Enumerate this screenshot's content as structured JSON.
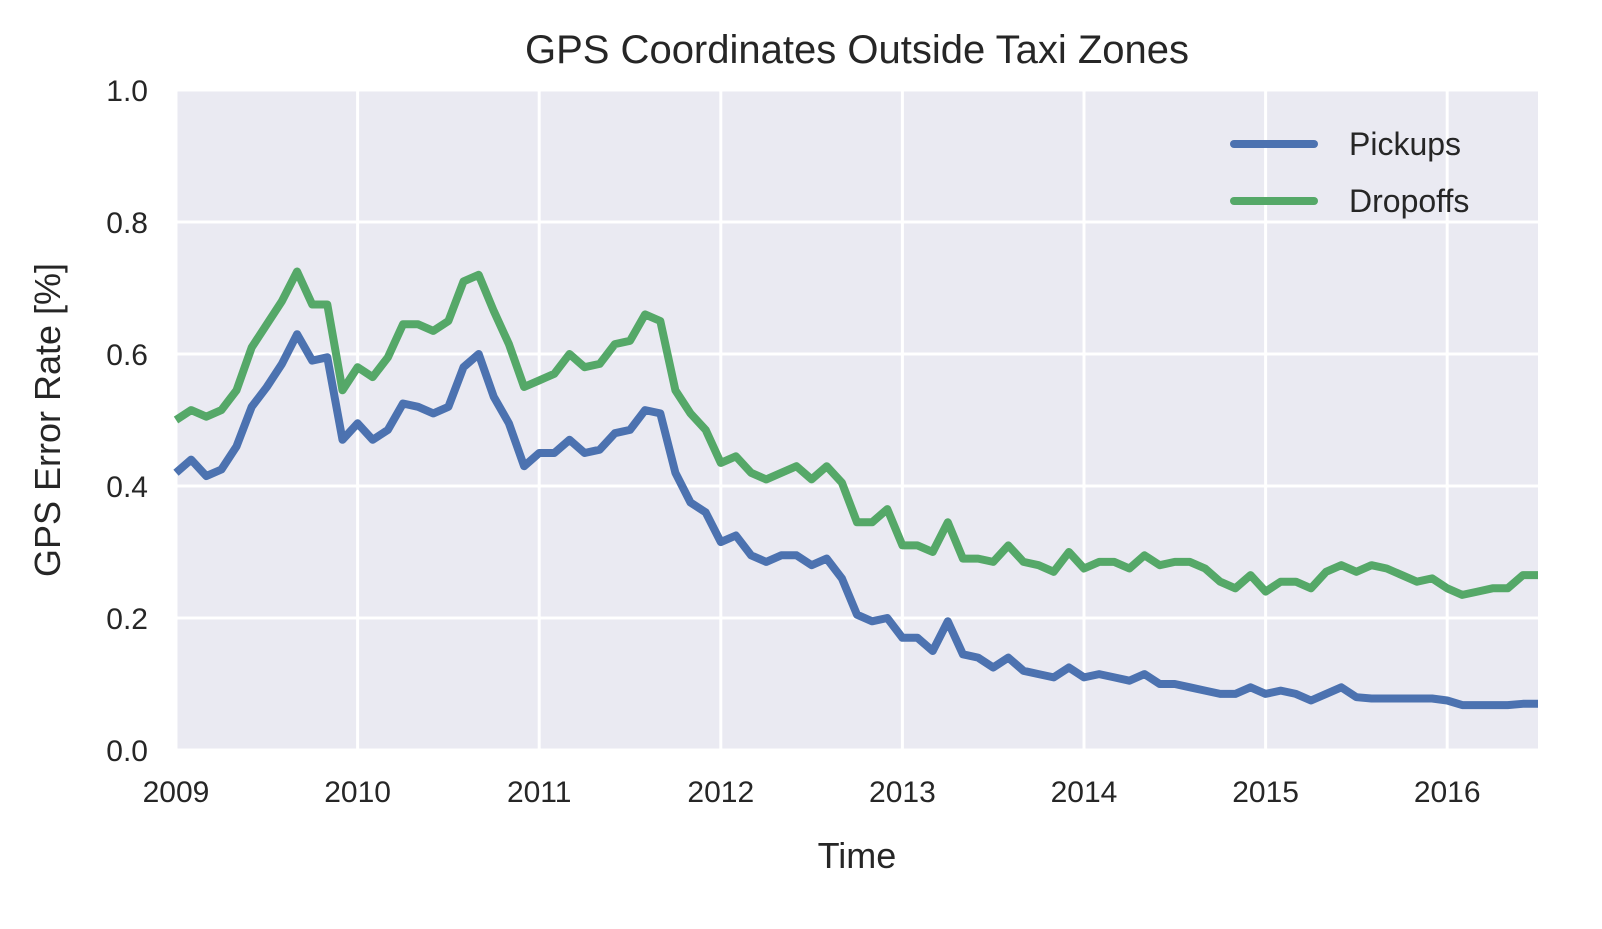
{
  "chart_data": {
    "type": "line",
    "title": "GPS Coordinates Outside Taxi Zones",
    "xlabel": "Time",
    "ylabel": "GPS Error Rate [%]",
    "xlim": [
      2009.0,
      2016.5
    ],
    "ylim": [
      0.0,
      1.0
    ],
    "xticks": [
      "2009",
      "2010",
      "2011",
      "2012",
      "2013",
      "2014",
      "2015",
      "2016"
    ],
    "yticks": [
      "0.0",
      "0.2",
      "0.4",
      "0.6",
      "0.8",
      "1.0"
    ],
    "grid": true,
    "legend_position": "top-right",
    "x": [
      2009.0,
      2009.083,
      2009.167,
      2009.25,
      2009.333,
      2009.417,
      2009.5,
      2009.583,
      2009.667,
      2009.75,
      2009.833,
      2009.917,
      2010.0,
      2010.083,
      2010.167,
      2010.25,
      2010.333,
      2010.417,
      2010.5,
      2010.583,
      2010.667,
      2010.75,
      2010.833,
      2010.917,
      2011.0,
      2011.083,
      2011.167,
      2011.25,
      2011.333,
      2011.417,
      2011.5,
      2011.583,
      2011.667,
      2011.75,
      2011.833,
      2011.917,
      2012.0,
      2012.083,
      2012.167,
      2012.25,
      2012.333,
      2012.417,
      2012.5,
      2012.583,
      2012.667,
      2012.75,
      2012.833,
      2012.917,
      2013.0,
      2013.083,
      2013.167,
      2013.25,
      2013.333,
      2013.417,
      2013.5,
      2013.583,
      2013.667,
      2013.75,
      2013.833,
      2013.917,
      2014.0,
      2014.083,
      2014.167,
      2014.25,
      2014.333,
      2014.417,
      2014.5,
      2014.583,
      2014.667,
      2014.75,
      2014.833,
      2014.917,
      2015.0,
      2015.083,
      2015.167,
      2015.25,
      2015.333,
      2015.417,
      2015.5,
      2015.583,
      2015.667,
      2015.75,
      2015.833,
      2015.917,
      2016.0,
      2016.083,
      2016.167,
      2016.25,
      2016.333,
      2016.417,
      2016.5
    ],
    "series": [
      {
        "name": "Pickups",
        "color": "#4c72b0",
        "values": [
          0.42,
          0.44,
          0.415,
          0.425,
          0.46,
          0.52,
          0.55,
          0.585,
          0.63,
          0.59,
          0.595,
          0.47,
          0.495,
          0.47,
          0.485,
          0.525,
          0.52,
          0.51,
          0.52,
          0.58,
          0.6,
          0.535,
          0.495,
          0.43,
          0.45,
          0.45,
          0.47,
          0.45,
          0.455,
          0.48,
          0.485,
          0.515,
          0.51,
          0.42,
          0.375,
          0.36,
          0.315,
          0.325,
          0.295,
          0.285,
          0.295,
          0.295,
          0.28,
          0.29,
          0.26,
          0.205,
          0.195,
          0.2,
          0.17,
          0.17,
          0.15,
          0.195,
          0.145,
          0.14,
          0.125,
          0.14,
          0.12,
          0.115,
          0.11,
          0.125,
          0.11,
          0.115,
          0.11,
          0.105,
          0.115,
          0.1,
          0.1,
          0.095,
          0.09,
          0.085,
          0.085,
          0.095,
          0.085,
          0.09,
          0.085,
          0.075,
          0.085,
          0.095,
          0.08,
          0.078,
          0.078,
          0.078,
          0.078,
          0.078,
          0.075,
          0.068,
          0.068,
          0.068,
          0.068,
          0.07,
          0.07
        ]
      },
      {
        "name": "Dropoffs",
        "color": "#55a868",
        "values": [
          0.5,
          0.515,
          0.505,
          0.515,
          0.545,
          0.61,
          0.645,
          0.68,
          0.725,
          0.675,
          0.675,
          0.545,
          0.58,
          0.565,
          0.595,
          0.645,
          0.645,
          0.635,
          0.65,
          0.71,
          0.72,
          0.665,
          0.615,
          0.55,
          0.56,
          0.57,
          0.6,
          0.58,
          0.585,
          0.615,
          0.62,
          0.66,
          0.65,
          0.545,
          0.51,
          0.485,
          0.435,
          0.445,
          0.42,
          0.41,
          0.42,
          0.43,
          0.41,
          0.43,
          0.405,
          0.345,
          0.345,
          0.365,
          0.31,
          0.31,
          0.3,
          0.345,
          0.29,
          0.29,
          0.285,
          0.31,
          0.285,
          0.28,
          0.27,
          0.3,
          0.275,
          0.285,
          0.285,
          0.275,
          0.295,
          0.28,
          0.285,
          0.285,
          0.275,
          0.255,
          0.245,
          0.265,
          0.24,
          0.255,
          0.255,
          0.245,
          0.27,
          0.28,
          0.27,
          0.28,
          0.275,
          0.265,
          0.255,
          0.26,
          0.245,
          0.235,
          0.24,
          0.245,
          0.245,
          0.265,
          0.265
        ]
      }
    ]
  }
}
